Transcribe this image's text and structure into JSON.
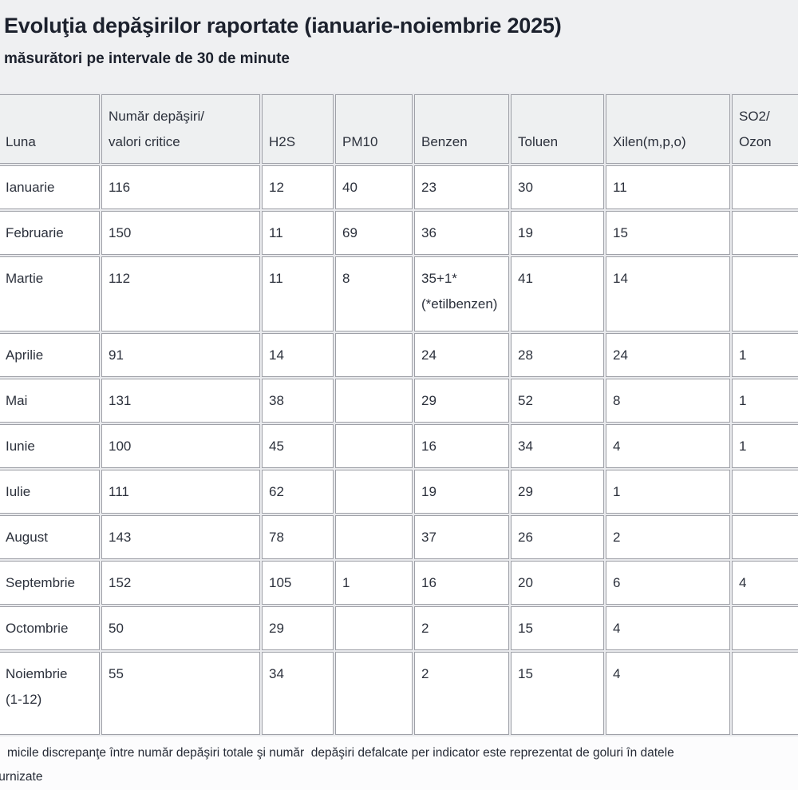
{
  "page": {
    "title": "Evoluţia depăşirilor raportate (ianuarie-noiembrie 2025)",
    "subtitle": "măsurători pe intervale de 30 de minute",
    "footnote": {
      "line1": "micile discrepanţe între număr depăşiri totale şi număr  depăşiri defalcate per indicator este reprezentat de goluri în datele",
      "line2": "furnizate"
    }
  },
  "table": {
    "columns": [
      {
        "lines": [
          "Luna"
        ]
      },
      {
        "lines": [
          "Număr depăşiri/",
          "valori critice"
        ]
      },
      {
        "lines": [
          "H2S"
        ]
      },
      {
        "lines": [
          "PM10"
        ]
      },
      {
        "lines": [
          "Benzen"
        ]
      },
      {
        "lines": [
          "Toluen"
        ]
      },
      {
        "lines": [
          "Xilen(m,p,o)"
        ]
      },
      {
        "lines": [
          "SO2/",
          "Ozon"
        ]
      }
    ],
    "rows": [
      {
        "month": [
          "Ianuarie"
        ],
        "values": [
          [
            "116"
          ],
          [
            "12"
          ],
          [
            "40"
          ],
          [
            "23"
          ],
          [
            "30"
          ],
          [
            "11"
          ],
          [
            ""
          ]
        ]
      },
      {
        "month": [
          "Februarie"
        ],
        "values": [
          [
            "150"
          ],
          [
            "11"
          ],
          [
            "69"
          ],
          [
            "36"
          ],
          [
            "19"
          ],
          [
            "15"
          ],
          [
            ""
          ]
        ]
      },
      {
        "month": [
          "Martie"
        ],
        "values": [
          [
            "112"
          ],
          [
            "11"
          ],
          [
            "8"
          ],
          [
            "35+1*",
            "(*etilbenzen)"
          ],
          [
            "41"
          ],
          [
            "14"
          ],
          [
            ""
          ]
        ]
      },
      {
        "month": [
          "Aprilie"
        ],
        "values": [
          [
            "91"
          ],
          [
            "14"
          ],
          [
            ""
          ],
          [
            "24"
          ],
          [
            "28"
          ],
          [
            "24"
          ],
          [
            "1"
          ]
        ]
      },
      {
        "month": [
          "Mai"
        ],
        "values": [
          [
            "131"
          ],
          [
            "38"
          ],
          [
            ""
          ],
          [
            "29"
          ],
          [
            "52"
          ],
          [
            "8"
          ],
          [
            "1"
          ]
        ]
      },
      {
        "month": [
          "Iunie"
        ],
        "values": [
          [
            "100"
          ],
          [
            "45"
          ],
          [
            ""
          ],
          [
            "16"
          ],
          [
            "34"
          ],
          [
            "4"
          ],
          [
            "1"
          ]
        ]
      },
      {
        "month": [
          "Iulie"
        ],
        "values": [
          [
            "111"
          ],
          [
            "62"
          ],
          [
            ""
          ],
          [
            "19"
          ],
          [
            "29"
          ],
          [
            "1"
          ],
          [
            ""
          ]
        ]
      },
      {
        "month": [
          "August"
        ],
        "values": [
          [
            "143"
          ],
          [
            "78"
          ],
          [
            ""
          ],
          [
            "37"
          ],
          [
            "26"
          ],
          [
            "2"
          ],
          [
            ""
          ]
        ]
      },
      {
        "month": [
          "Septembrie"
        ],
        "values": [
          [
            "152"
          ],
          [
            "105"
          ],
          [
            "1"
          ],
          [
            "16"
          ],
          [
            "20"
          ],
          [
            "6"
          ],
          [
            "4"
          ]
        ]
      },
      {
        "month": [
          "Octombrie"
        ],
        "values": [
          [
            "50"
          ],
          [
            "29"
          ],
          [
            ""
          ],
          [
            "2"
          ],
          [
            "15"
          ],
          [
            "4"
          ],
          [
            ""
          ]
        ]
      },
      {
        "month": [
          "Noiembrie",
          "(1-12)"
        ],
        "values": [
          [
            "55"
          ],
          [
            "34"
          ],
          [
            ""
          ],
          [
            "2"
          ],
          [
            "15"
          ],
          [
            "4"
          ],
          [
            ""
          ]
        ]
      }
    ]
  },
  "colors": {
    "band_background": "#eff0f2",
    "page_background": "#fcfcfd",
    "cell_background": "#ffffff",
    "header_cell_background": "#eef0f1",
    "border": "#9fa1a8",
    "text": "#2c313c",
    "title_text": "#1c212d"
  }
}
